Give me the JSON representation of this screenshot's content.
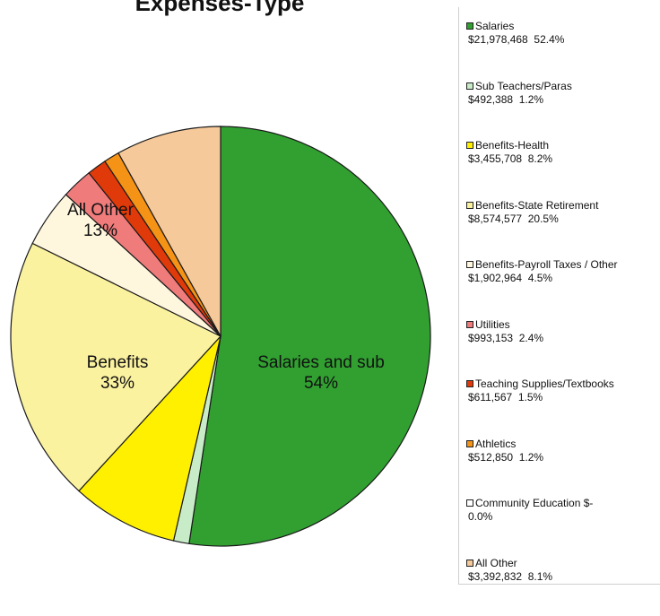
{
  "chart_data": {
    "type": "pie",
    "title": "Expenses-Type",
    "slices": [
      {
        "name": "Salaries",
        "amount": "$21,978,468",
        "pct_label": "52.4%",
        "percent": 52.4,
        "color": "#31a031"
      },
      {
        "name": "Sub Teachers/Paras",
        "amount": "$492,388",
        "pct_label": "1.2%",
        "percent": 1.2,
        "color": "#c8ecc8"
      },
      {
        "name": "Benefits-Health",
        "amount": "$3,455,708",
        "pct_label": "8.2%",
        "percent": 8.2,
        "color": "#fff000"
      },
      {
        "name": "Benefits-State Retirement",
        "amount": "$8,574,577",
        "pct_label": "20.5%",
        "percent": 20.5,
        "color": "#fbf2a0"
      },
      {
        "name": "Benefits-Payroll Taxes / Other",
        "amount": "$1,902,964",
        "pct_label": "4.5%",
        "percent": 4.5,
        "color": "#fff6de"
      },
      {
        "name": "Utilities",
        "amount": "$993,153",
        "pct_label": "2.4%",
        "percent": 2.4,
        "color": "#ef7b7b"
      },
      {
        "name": "Teaching Supplies/Textbooks",
        "amount": "$611,567",
        "pct_label": "1.5%",
        "percent": 1.5,
        "color": "#e03a0a"
      },
      {
        "name": "Athletics",
        "amount": "$512,850",
        "pct_label": "1.2%",
        "percent": 1.2,
        "color": "#f59316"
      },
      {
        "name": "Community Education",
        "amount": "$-",
        "pct_label": "0.0%",
        "percent": 0.0,
        "color": "#ffffff"
      },
      {
        "name": "All Other",
        "amount": "$3,392,832",
        "pct_label": "8.1%",
        "percent": 8.1,
        "color": "#f5c99a"
      }
    ],
    "pie_labels": [
      {
        "text": "Salaries and sub",
        "pct": "54%"
      },
      {
        "text": "Benefits",
        "pct": "33%"
      },
      {
        "text": "All Other",
        "pct": "13%"
      }
    ],
    "legend_position": "right"
  }
}
